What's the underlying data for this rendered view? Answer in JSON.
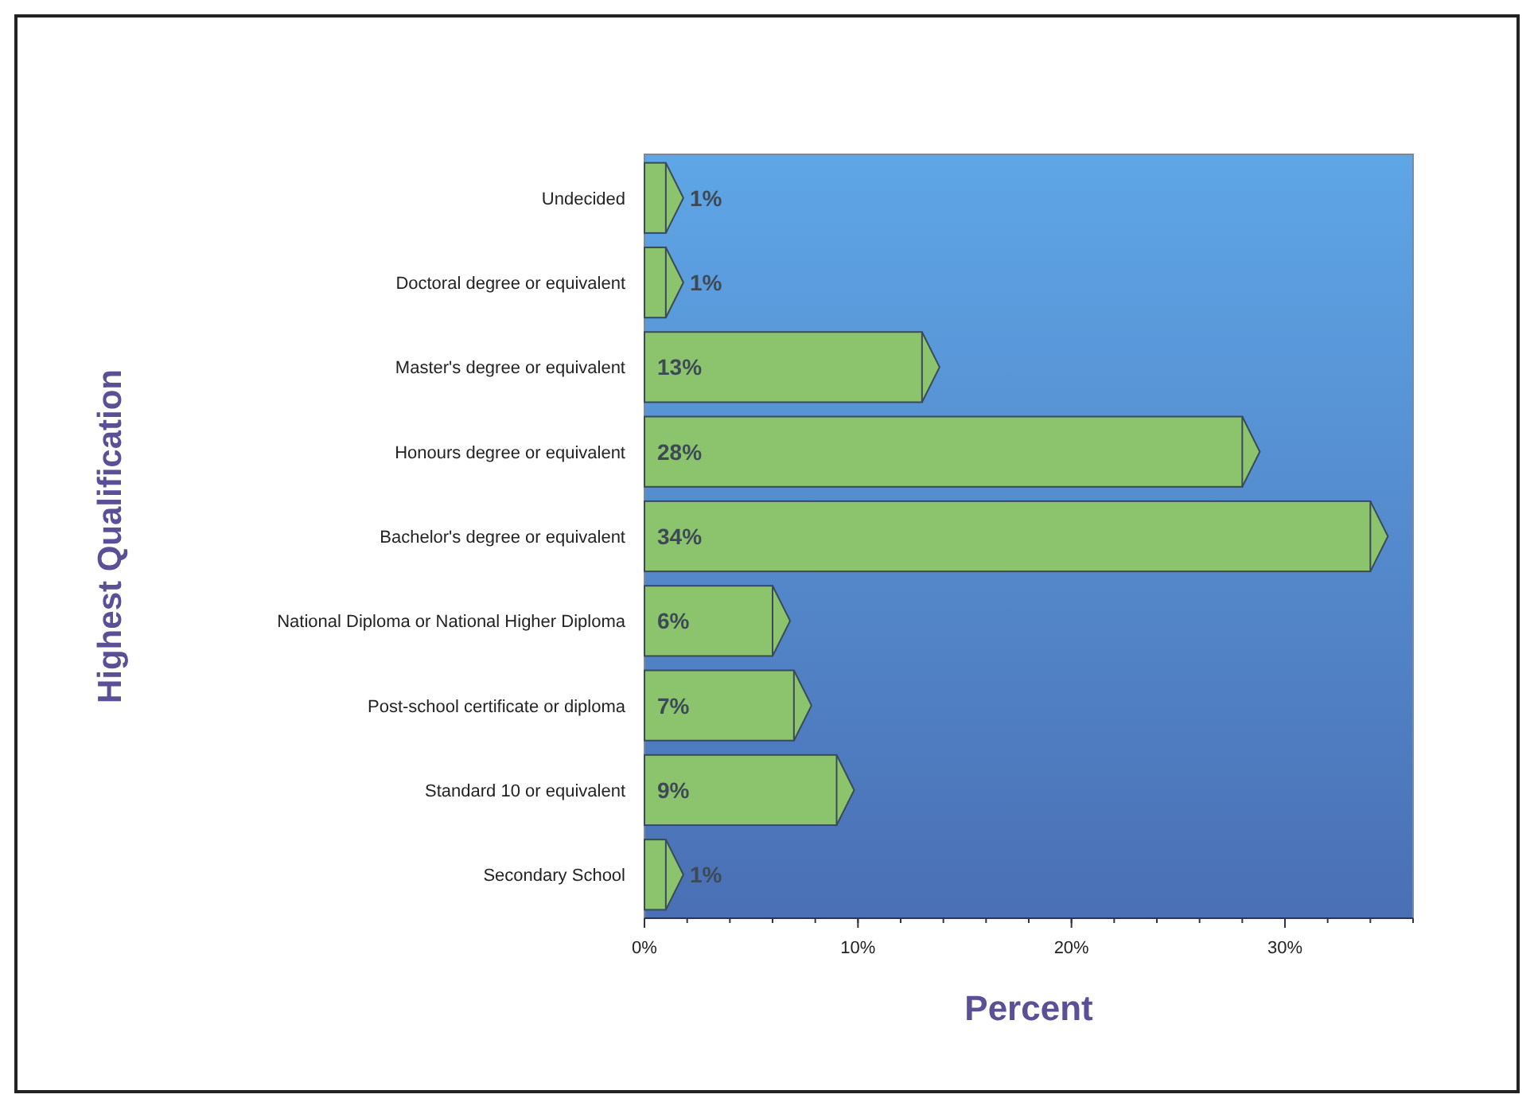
{
  "chart_data": {
    "type": "bar",
    "orientation": "horizontal",
    "xlabel": "Percent",
    "ylabel": "Highest Qualification",
    "categories": [
      "Undecided",
      "Doctoral degree or equivalent",
      "Master's degree or equivalent",
      "Honours degree or equivalent",
      "Bachelor's degree or equivalent",
      "National Diploma or National Higher Diploma",
      "Post-school certificate or diploma",
      "Standard 10 or equivalent",
      "Secondary School"
    ],
    "values": [
      1,
      1,
      13,
      28,
      34,
      6,
      7,
      9,
      1
    ],
    "value_labels": [
      "1%",
      "1%",
      "13%",
      "28%",
      "34%",
      "6%",
      "7%",
      "9%",
      "1%"
    ],
    "color": "#8cc46e",
    "xlim": [
      0,
      36
    ],
    "xticks": [
      {
        "value": 0,
        "label": "0%"
      },
      {
        "value": 10,
        "label": "10%"
      },
      {
        "value": 20,
        "label": "20%"
      },
      {
        "value": 30,
        "label": "30%"
      }
    ],
    "grid": false
  }
}
